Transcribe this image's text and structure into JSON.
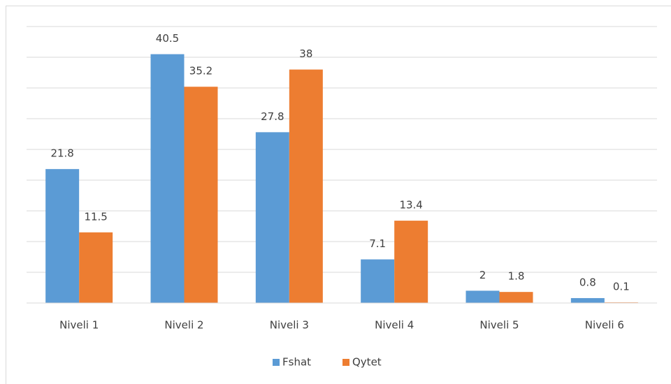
{
  "chart_data": {
    "type": "bar",
    "categories": [
      "Niveli 1",
      "Niveli 2",
      "Niveli 3",
      "Niveli 4",
      "Niveli 5",
      "Niveli 6"
    ],
    "series": [
      {
        "name": "Fshat",
        "color": "#5b9bd5",
        "values": [
          21.8,
          40.5,
          27.8,
          7.1,
          2,
          0.8
        ]
      },
      {
        "name": "Qytet",
        "color": "#ed7d31",
        "values": [
          11.5,
          35.2,
          38,
          13.4,
          1.8,
          0.1
        ]
      }
    ],
    "ylim": [
      0,
      45
    ],
    "yticks": [
      0,
      5,
      10,
      15,
      20,
      25,
      30,
      35,
      40,
      45
    ],
    "grid": true,
    "legend": "bottom"
  }
}
